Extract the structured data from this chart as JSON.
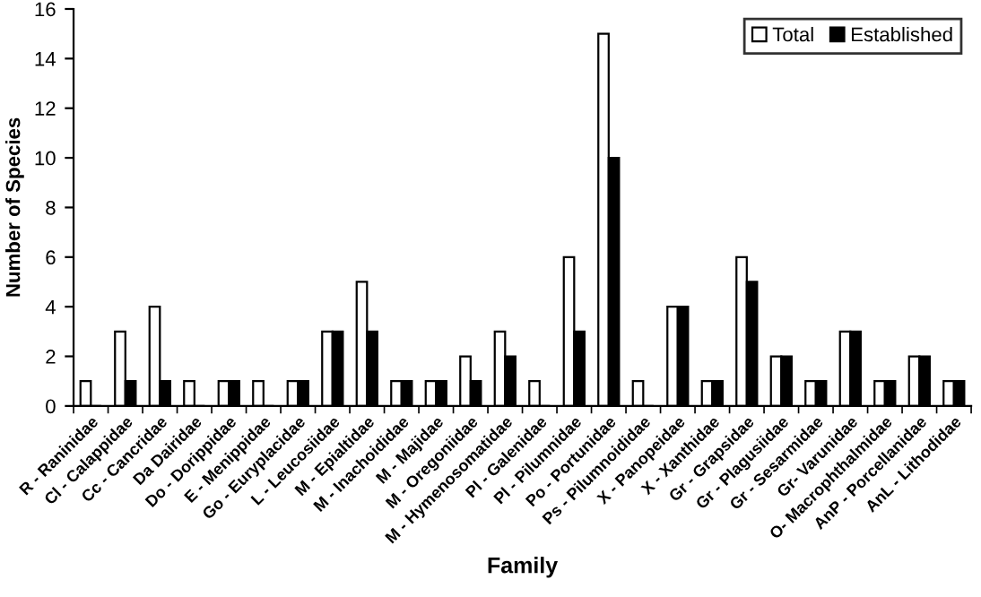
{
  "chart_data": {
    "type": "bar",
    "xlabel": "Family",
    "ylabel": "Number of Species",
    "categories": [
      "R - Raninidae",
      "Cl - Calappidae",
      "Cc - Cancridae",
      "Da Dairidae",
      "Do - Dorippidae",
      "E - Menippidae",
      "Go - Euryplacidae",
      "L - Leucosiidae",
      "M - Epialtidae",
      "M - Inachoididae",
      "M - Majidae",
      "M - Oregoniidae",
      "M - Hymenosomatidae",
      "Pl - Galenidae",
      "Pl - Pilumnidae",
      "Po - Portunidae",
      "Ps - Pilumnoididae",
      "X - Panopeidae",
      "X - Xanthidae",
      "Gr - Grapsidae",
      "Gr - Plagusiidae",
      "Gr - Sesarmidae",
      "Gr- Varunidae",
      "O- Macrophthalmidae",
      "AnP - Porcellanidae",
      "AnL - Lithodidae"
    ],
    "series": [
      {
        "name": "Total",
        "color": "#ffffff",
        "values": [
          1,
          3,
          4,
          1,
          1,
          1,
          1,
          3,
          5,
          1,
          1,
          2,
          3,
          1,
          6,
          15,
          1,
          4,
          1,
          6,
          2,
          1,
          3,
          1,
          2,
          1
        ]
      },
      {
        "name": "Established",
        "color": "#000000",
        "values": [
          0,
          1,
          1,
          0,
          1,
          0,
          1,
          3,
          3,
          1,
          1,
          1,
          2,
          0,
          3,
          10,
          0,
          4,
          1,
          5,
          2,
          1,
          3,
          1,
          2,
          1
        ]
      }
    ],
    "ylim": [
      0,
      16
    ],
    "yticks": [
      0,
      2,
      4,
      6,
      8,
      10,
      12,
      14,
      16
    ],
    "grid": false,
    "legend": "top right"
  }
}
